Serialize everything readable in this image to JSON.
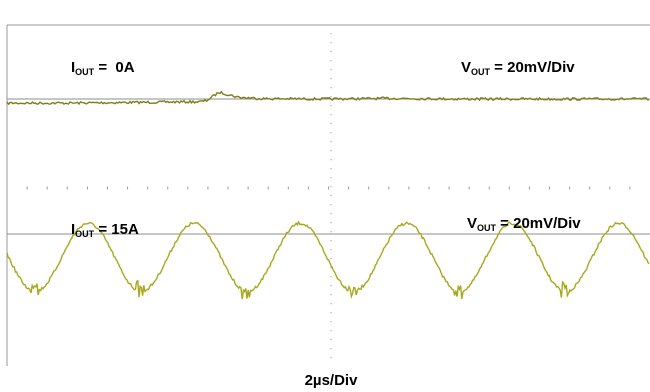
{
  "chart_data": [
    {
      "type": "line",
      "xlabel": "2µs/Div",
      "colors": {
        "trace": "#7d7d1c"
      },
      "labels": {
        "current_main": "I",
        "current_sub": "OUT",
        "current_value": " =  0A",
        "voltage_main": "V",
        "voltage_sub": "OUT",
        "voltage_value": " = 20mV/Div"
      },
      "series": [
        {
          "x_div": [
            0,
            1,
            2,
            3,
            3.1,
            3.3,
            3.6,
            4,
            5,
            6,
            7,
            8,
            9,
            10
          ],
          "y_div": [
            -0.12,
            -0.12,
            -0.1,
            -0.08,
            -0.05,
            0.2,
            0.05,
            0.01,
            0.0,
            0.02,
            0.0,
            0.0,
            0.0,
            0.0
          ]
        }
      ]
    },
    {
      "type": "line",
      "xlabel": "2µs/Div",
      "colors": {
        "trace": "#a8a81e"
      },
      "labels": {
        "current_main": "I",
        "current_sub": "OUT",
        "current_value": " = 15A",
        "voltage_main": "V",
        "voltage_sub": "OUT",
        "voltage_value": " = 20mV/Div"
      },
      "series": [
        {
          "waveform": "periodic ripple",
          "period_div": 1.65,
          "peak_div": 1.05,
          "trough_div": -0.95
        }
      ]
    }
  ]
}
